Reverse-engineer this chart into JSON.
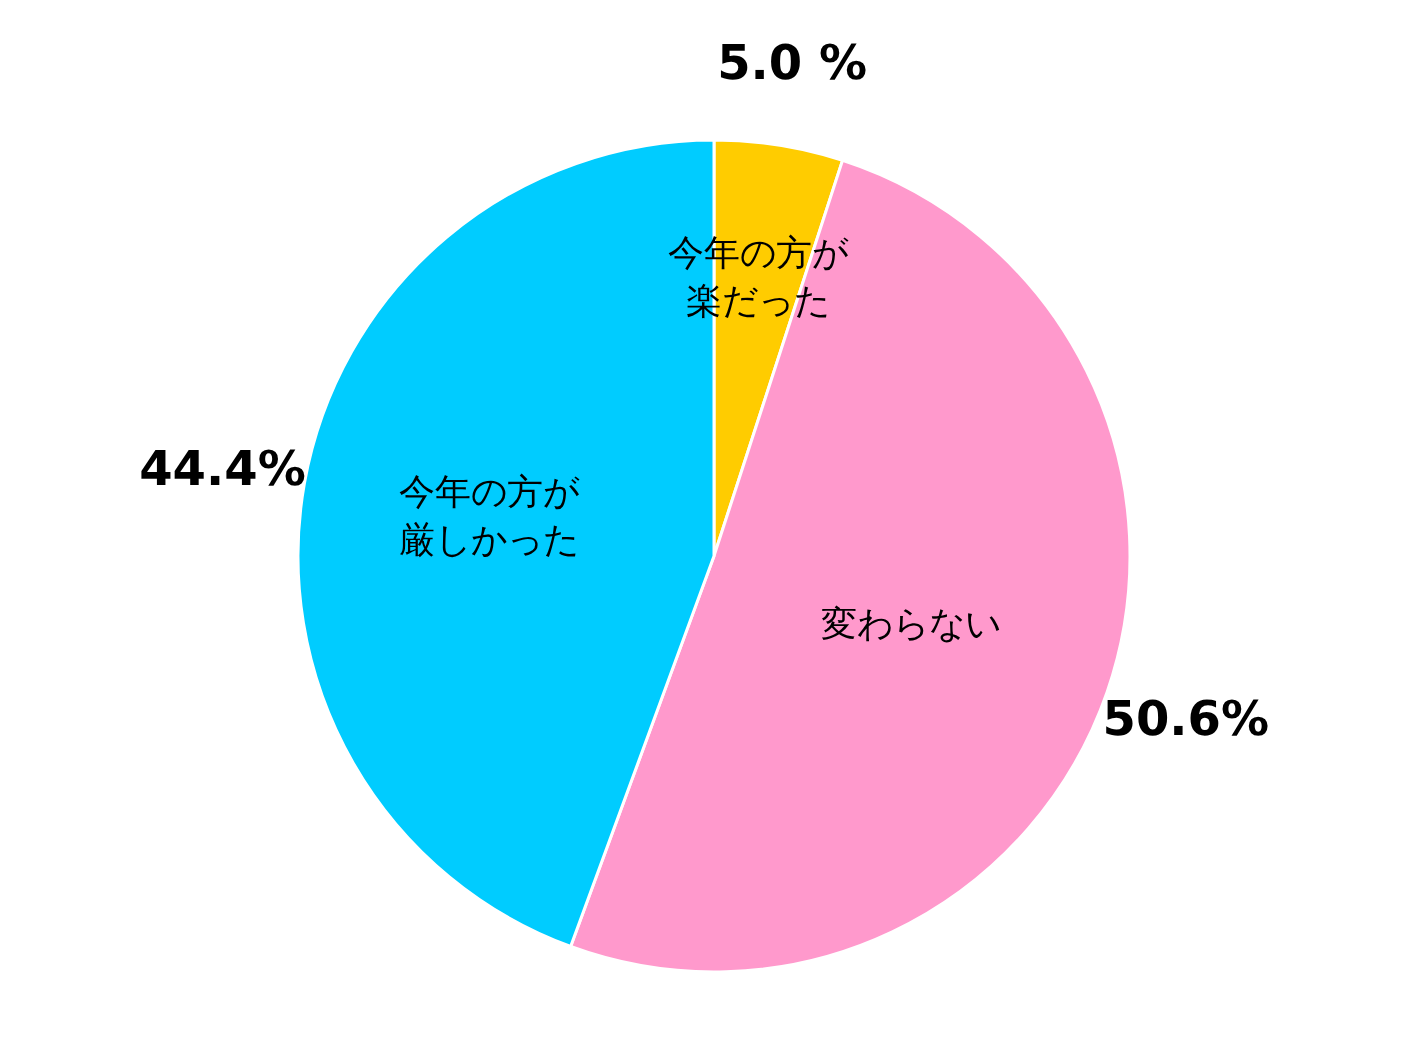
{
  "chart_data": {
    "type": "pie",
    "categories": [
      "今年の方が楽だった",
      "変わらない",
      "今年の方が厳しかった"
    ],
    "values": [
      5.0,
      50.6,
      44.4
    ],
    "colors": [
      "#ffcc00",
      "#ff99cc",
      "#00ccff"
    ],
    "value_labels": [
      "5.0 %",
      "50.6%",
      "44.4%"
    ]
  }
}
